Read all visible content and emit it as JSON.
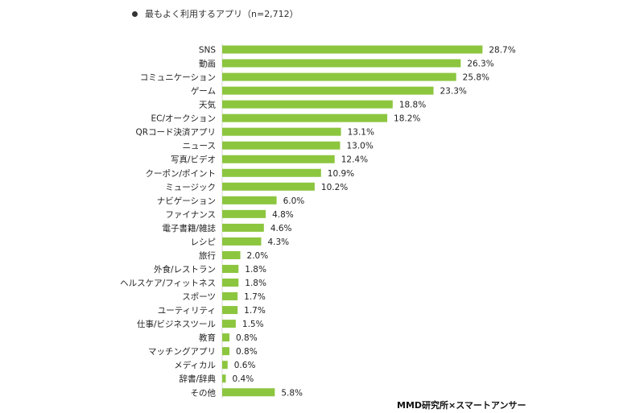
{
  "header": {
    "title": "最もよく利用するアプリ（n=2,712）"
  },
  "source": "MMD研究所×スマートアンサー",
  "colors": {
    "bar": "#8cc63f",
    "text": "#222222"
  },
  "chart_data": {
    "type": "bar",
    "orientation": "horizontal",
    "title": "最もよく利用するアプリ（n=2,712）",
    "xlabel": "",
    "ylabel": "",
    "value_suffix": "%",
    "grid": false,
    "legend": "none",
    "xlim": [
      0,
      30
    ],
    "categories": [
      "SNS",
      "動画",
      "コミュニケーション",
      "ゲーム",
      "天気",
      "EC/オークション",
      "QRコード決済アプリ",
      "ニュース",
      "写真/ビデオ",
      "クーポン/ポイント",
      "ミュージック",
      "ナビゲーション",
      "ファイナンス",
      "電子書籍/雑誌",
      "レシピ",
      "旅行",
      "外食/レストラン",
      "ヘルスケア/フィットネス",
      "スポーツ",
      "ユーティリティ",
      "仕事/ビジネスツール",
      "教育",
      "マッチングアプリ",
      "メディカル",
      "辞書/辞典",
      "その他"
    ],
    "values": [
      28.7,
      26.3,
      25.8,
      23.3,
      18.8,
      18.2,
      13.1,
      13.0,
      12.4,
      10.9,
      10.2,
      6.0,
      4.8,
      4.6,
      4.3,
      2.0,
      1.8,
      1.8,
      1.7,
      1.7,
      1.5,
      0.8,
      0.8,
      0.6,
      0.4,
      5.8
    ]
  }
}
